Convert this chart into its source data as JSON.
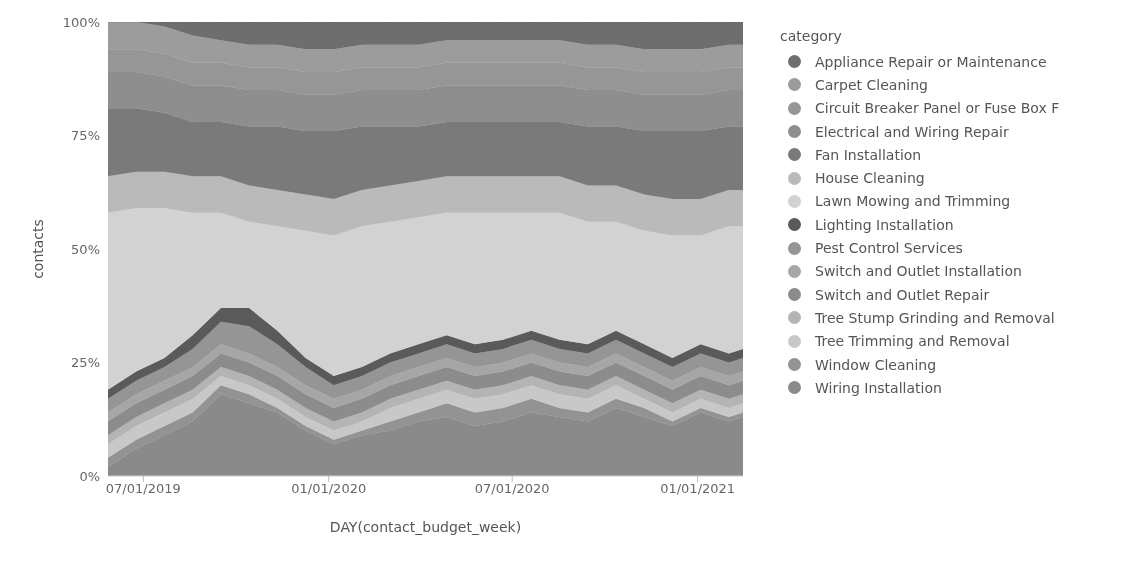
{
  "chart_data": {
    "type": "area",
    "stacked": true,
    "xlabel": "DAY(contact_budget_week)",
    "ylabel": "contacts",
    "legend_title": "category",
    "legend": "right",
    "x": [
      "2019-05-27",
      "2019-06-24",
      "2019-07-22",
      "2019-08-19",
      "2019-09-16",
      "2019-10-14",
      "2019-11-11",
      "2019-12-09",
      "2020-01-06",
      "2020-02-03",
      "2020-03-02",
      "2020-03-30",
      "2020-04-27",
      "2020-05-25",
      "2020-06-22",
      "2020-07-20",
      "2020-08-17",
      "2020-09-14",
      "2020-10-12",
      "2020-11-09",
      "2020-12-07",
      "2021-01-04",
      "2021-02-01",
      "2021-02-15"
    ],
    "xlim": [
      "2019-05-27",
      "2021-02-15"
    ],
    "xticks": [
      {
        "value": "2019-07-01",
        "label": "07/01/2019"
      },
      {
        "value": "2020-01-01",
        "label": "01/01/2020"
      },
      {
        "value": "2020-07-01",
        "label": "07/01/2020"
      },
      {
        "value": "2021-01-01",
        "label": "01/01/2021"
      }
    ],
    "ylim": [
      0,
      100
    ],
    "yticks": [
      {
        "value": 0,
        "label": "0%"
      },
      {
        "value": 25,
        "label": "25%"
      },
      {
        "value": 50,
        "label": "50%"
      },
      {
        "value": 75,
        "label": "75%"
      },
      {
        "value": 100,
        "label": "100%"
      }
    ],
    "series": [
      {
        "name": "Wiring Installation",
        "color": "#8a8a8a",
        "values": [
          2,
          6,
          9,
          12,
          18,
          16,
          14,
          10,
          7,
          9,
          10,
          12,
          13,
          11,
          12,
          14,
          13,
          12,
          15,
          13,
          11,
          14,
          12,
          13
        ]
      },
      {
        "name": "Window Cleaning",
        "color": "#939393",
        "values": [
          2,
          2,
          2,
          2,
          2,
          2,
          1,
          1,
          1,
          1,
          2,
          2,
          3,
          3,
          3,
          3,
          2,
          2,
          2,
          2,
          1,
          1,
          1,
          1
        ]
      },
      {
        "name": "Tree Trimming and Removal",
        "color": "#c8c8c8",
        "values": [
          3,
          3,
          3,
          3,
          2,
          2,
          2,
          2,
          2,
          2,
          3,
          3,
          3,
          3,
          3,
          3,
          3,
          3,
          3,
          2,
          2,
          2,
          2,
          2
        ]
      },
      {
        "name": "Tree Stump Grinding and Removal",
        "color": "#b4b4b4",
        "values": [
          2,
          2,
          2,
          2,
          2,
          2,
          2,
          2,
          2,
          2,
          2,
          2,
          2,
          2,
          2,
          2,
          2,
          2,
          2,
          2,
          2,
          2,
          2,
          2
        ]
      },
      {
        "name": "Switch and Outlet Repair",
        "color": "#8c8c8c",
        "values": [
          3,
          3,
          3,
          3,
          3,
          3,
          3,
          3,
          3,
          3,
          3,
          3,
          3,
          3,
          3,
          3,
          3,
          3,
          3,
          3,
          3,
          3,
          3,
          3
        ]
      },
      {
        "name": "Switch and Outlet Installation",
        "color": "#a6a6a6",
        "values": [
          2,
          2,
          2,
          2,
          2,
          2,
          2,
          2,
          2,
          2,
          2,
          2,
          2,
          2,
          2,
          2,
          2,
          2,
          2,
          2,
          2,
          2,
          2,
          2
        ]
      },
      {
        "name": "Pest Control Services",
        "color": "#959595",
        "values": [
          3,
          3,
          3,
          4,
          5,
          6,
          5,
          4,
          3,
          3,
          3,
          3,
          3,
          3,
          3,
          3,
          3,
          3,
          3,
          3,
          3,
          3,
          3,
          3
        ]
      },
      {
        "name": "Lighting Installation",
        "color": "#5a5a5a",
        "values": [
          2,
          2,
          2,
          3,
          3,
          4,
          3,
          2,
          2,
          2,
          2,
          2,
          2,
          2,
          2,
          2,
          2,
          2,
          2,
          2,
          2,
          2,
          2,
          2
        ]
      },
      {
        "name": "Lawn Mowing and Trimming",
        "color": "#d2d2d2",
        "values": [
          39,
          36,
          33,
          27,
          21,
          19,
          23,
          28,
          31,
          31,
          29,
          28,
          27,
          29,
          28,
          26,
          28,
          27,
          24,
          25,
          27,
          24,
          28,
          27
        ]
      },
      {
        "name": "House Cleaning",
        "color": "#bababa",
        "values": [
          8,
          8,
          8,
          8,
          8,
          8,
          8,
          8,
          8,
          8,
          8,
          8,
          8,
          8,
          8,
          8,
          8,
          8,
          8,
          8,
          8,
          8,
          8,
          8
        ]
      },
      {
        "name": "Fan Installation",
        "color": "#7a7a7a",
        "values": [
          15,
          14,
          13,
          12,
          12,
          13,
          14,
          14,
          15,
          14,
          13,
          12,
          12,
          12,
          12,
          12,
          12,
          13,
          13,
          14,
          15,
          15,
          14,
          14
        ]
      },
      {
        "name": "Electrical and Wiring Repair",
        "color": "#8e8e8e",
        "values": [
          8,
          8,
          8,
          8,
          8,
          8,
          8,
          8,
          8,
          8,
          8,
          8,
          8,
          8,
          8,
          8,
          8,
          8,
          8,
          8,
          8,
          8,
          8,
          8
        ]
      },
      {
        "name": "Circuit Breaker Panel or Fuse Box F",
        "color": "#969696",
        "values": [
          5,
          5,
          5,
          5,
          5,
          5,
          5,
          5,
          5,
          5,
          5,
          5,
          5,
          5,
          5,
          5,
          5,
          5,
          5,
          5,
          5,
          5,
          5,
          5
        ]
      },
      {
        "name": "Carpet Cleaning",
        "color": "#9c9c9c",
        "values": [
          6,
          6,
          6,
          6,
          5,
          5,
          5,
          5,
          5,
          5,
          5,
          5,
          5,
          5,
          5,
          5,
          5,
          5,
          5,
          5,
          5,
          5,
          5,
          5
        ]
      },
      {
        "name": "Appliance Repair or Maintenance",
        "color": "#6e6e6e",
        "values": [
          0,
          0,
          1,
          3,
          4,
          5,
          5,
          6,
          6,
          5,
          5,
          5,
          4,
          4,
          4,
          4,
          4,
          5,
          5,
          6,
          6,
          6,
          5,
          5
        ]
      }
    ]
  }
}
